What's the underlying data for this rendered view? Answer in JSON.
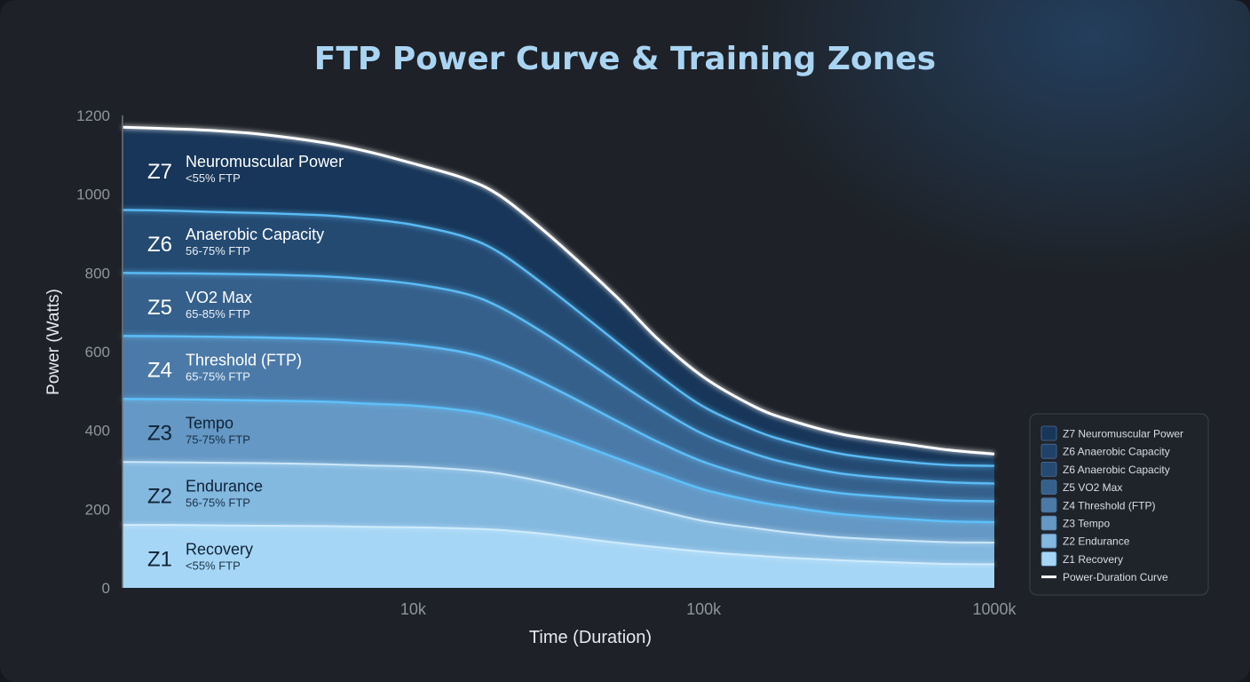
{
  "chart_data": {
    "type": "area",
    "title": "FTP Power Curve & Training Zones",
    "xlabel": "Time (Duration)",
    "ylabel": "Power (Watts)",
    "x_scale": "log",
    "x_tick_labels": [
      "10k",
      "100k",
      "1000k"
    ],
    "x_tick_values": [
      10000,
      100000,
      1000000
    ],
    "xlim": [
      1000,
      1000000
    ],
    "ylim": [
      0,
      1200
    ],
    "y_ticks": [
      0,
      200,
      400,
      600,
      800,
      1000,
      1200
    ],
    "grid": false,
    "legend_position": "bottom-right",
    "x": [
      1000,
      1500,
      2000,
      3000,
      5000,
      7000,
      10000,
      15000,
      20000,
      30000,
      50000,
      70000,
      100000,
      150000,
      200000,
      300000,
      500000,
      700000,
      1000000
    ],
    "power_duration_curve": {
      "name": "Power-Duration Curve",
      "values": [
        1170,
        1166,
        1162,
        1152,
        1130,
        1108,
        1078,
        1040,
        995,
        890,
        740,
        630,
        535,
        460,
        425,
        390,
        365,
        350,
        340
      ]
    },
    "zones": [
      {
        "id": "Z1",
        "name": "Recovery",
        "range": "<55% FTP",
        "color": "#a6d6f5",
        "upper": [
          160,
          160,
          159,
          158,
          157,
          155,
          154,
          151,
          147,
          135,
          115,
          103,
          92,
          82,
          76,
          70,
          64,
          61,
          60
        ]
      },
      {
        "id": "Z2",
        "name": "Endurance",
        "range": "56-75% FTP",
        "color": "#83b8df",
        "upper": [
          320,
          319,
          318,
          317,
          314,
          311,
          308,
          300,
          290,
          265,
          225,
          197,
          170,
          152,
          140,
          128,
          120,
          116,
          115
        ]
      },
      {
        "id": "Z3",
        "name": "Tempo",
        "range": "75-75% FTP",
        "color": "#6598c4",
        "upper": [
          480,
          479,
          478,
          476,
          473,
          468,
          463,
          450,
          432,
          390,
          330,
          290,
          250,
          220,
          205,
          187,
          175,
          169,
          167
        ]
      },
      {
        "id": "Z4",
        "name": "Threshold (FTP)",
        "range": "65-75% FTP",
        "color": "#4b7aa8",
        "upper": [
          640,
          639,
          638,
          636,
          632,
          626,
          617,
          598,
          570,
          510,
          425,
          370,
          320,
          280,
          260,
          240,
          228,
          222,
          220
        ]
      },
      {
        "id": "Z5",
        "name": "VO2 Max",
        "range": "65-85% FTP",
        "color": "#35608c",
        "upper": [
          800,
          799,
          798,
          796,
          791,
          784,
          772,
          748,
          712,
          635,
          525,
          455,
          390,
          340,
          315,
          290,
          275,
          268,
          265
        ]
      },
      {
        "id": "Z6",
        "name": "Anaerobic Capacity",
        "range": "56-75% FTP",
        "color": "#244a72",
        "upper": [
          960,
          958,
          955,
          952,
          946,
          937,
          922,
          892,
          850,
          755,
          625,
          540,
          460,
          400,
          370,
          340,
          320,
          312,
          310
        ]
      },
      {
        "id": "Z7",
        "name": "Neuromuscular Power",
        "range": "<55% FTP",
        "color": "#173659",
        "upper": "power_duration_curve"
      }
    ],
    "legend": [
      {
        "label": "Z7 Neuromuscular Power",
        "color": "#173659",
        "kind": "swatch"
      },
      {
        "label": "Z6 Anaerobic Capacity",
        "color": "#1f4368",
        "kind": "swatch"
      },
      {
        "label": "Z6 Anaerobic Capacity",
        "color": "#244a72",
        "kind": "swatch"
      },
      {
        "label": "Z5 VO2 Max",
        "color": "#35608c",
        "kind": "swatch"
      },
      {
        "label": "Z4 Threshold (FTP)",
        "color": "#4b7aa8",
        "kind": "swatch"
      },
      {
        "label": "Z3 Tempo",
        "color": "#6598c4",
        "kind": "swatch"
      },
      {
        "label": "Z2 Endurance",
        "color": "#83b8df",
        "kind": "swatch"
      },
      {
        "label": "Z1 Recovery",
        "color": "#a6d6f5",
        "kind": "swatch"
      },
      {
        "label": "Power-Duration Curve",
        "color": "#ffffff",
        "kind": "line"
      }
    ],
    "colors": {
      "title": "#a9d4f2",
      "axis_text": "#8e949c",
      "axis_label": "#e6e9ed",
      "zone_boundary": "#5ec4ff",
      "curve": "#ffffff",
      "zone_text_dark": "#ffffff",
      "zone_text_light": "#0f2236"
    }
  }
}
